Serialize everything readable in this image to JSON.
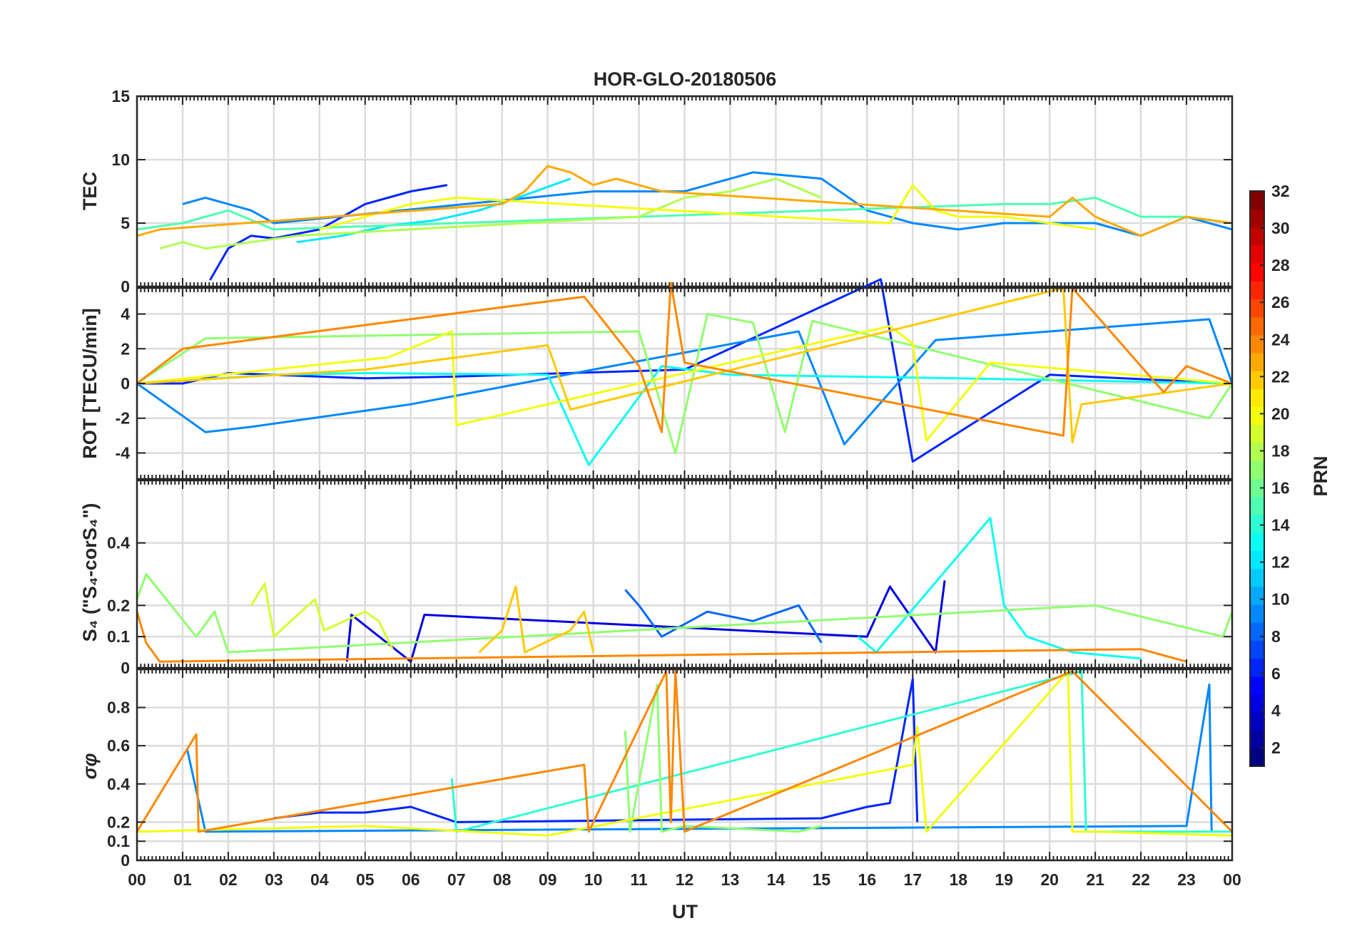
{
  "chart_data": {
    "type": "line",
    "title": "HOR-GLO-20180506",
    "xlabel": "UT",
    "x_tick_labels": [
      "00",
      "01",
      "02",
      "03",
      "04",
      "05",
      "06",
      "07",
      "08",
      "09",
      "10",
      "11",
      "12",
      "13",
      "14",
      "15",
      "16",
      "17",
      "18",
      "19",
      "20",
      "21",
      "22",
      "23",
      "00"
    ],
    "xlim": [
      0,
      24
    ],
    "grid": true,
    "panels": [
      {
        "id": "tec",
        "ylabel": "TEC",
        "ylim": [
          0,
          15
        ],
        "yticks": [
          0,
          5,
          10,
          15
        ],
        "ytick_labels": [
          "0",
          "5",
          "10",
          "15"
        ],
        "series": [
          {
            "prn": 6,
            "x": [
              1.6,
              2.0,
              2.5,
              3.0,
              4.0,
              5.0,
              6.0,
              6.8
            ],
            "y": [
              0.5,
              3.0,
              4.0,
              3.8,
              4.5,
              6.5,
              7.5,
              8.0
            ]
          },
          {
            "prn": 9,
            "x": [
              1.0,
              1.5,
              2.5,
              3.0,
              10.0,
              12.0,
              13.5,
              15.0,
              16.0,
              17.0,
              18.0,
              19.0,
              21.0,
              22.0,
              23.0,
              24.0
            ],
            "y": [
              6.5,
              7.0,
              6.0,
              5.0,
              7.5,
              7.5,
              9.0,
              8.5,
              6.0,
              5.0,
              4.5,
              5.0,
              5.0,
              4.0,
              5.5,
              4.5
            ]
          },
          {
            "prn": 12,
            "x": [
              3.5,
              4.5,
              5.5,
              6.5,
              7.5,
              8.5,
              9.5
            ],
            "y": [
              3.5,
              4.0,
              4.8,
              5.2,
              6.0,
              7.2,
              8.5
            ]
          },
          {
            "prn": 15,
            "x": [
              0,
              1.0,
              2.0,
              3.0,
              19.0,
              20.0,
              21.0,
              22.0,
              23.0,
              24.0
            ],
            "y": [
              4.5,
              5.0,
              6.0,
              4.5,
              6.5,
              6.5,
              7.0,
              5.5,
              5.5,
              5.0
            ]
          },
          {
            "prn": 18,
            "x": [
              0.5,
              1.0,
              1.5,
              2.5,
              3.5,
              11.0,
              12.0,
              13.0,
              14.0,
              15.0
            ],
            "y": [
              3.0,
              3.5,
              3.0,
              3.5,
              4.0,
              5.5,
              7.0,
              7.5,
              8.5,
              7.0
            ]
          },
          {
            "prn": 20,
            "x": [
              4.0,
              5.0,
              6.0,
              7.0,
              16.5,
              17.0,
              17.5,
              18.0,
              19.0,
              20.0,
              21.0
            ],
            "y": [
              4.5,
              5.5,
              6.5,
              7.0,
              5.0,
              8.0,
              6.0,
              5.5,
              5.5,
              5.0,
              4.5
            ]
          },
          {
            "prn": 23,
            "x": [
              0,
              0.5,
              8.0,
              8.5,
              9.0,
              9.5,
              10.0,
              10.5,
              11.0,
              11.5,
              20.0,
              20.5,
              21.0,
              22.0,
              23.0,
              24.0
            ],
            "y": [
              4.0,
              4.5,
              6.5,
              7.5,
              9.5,
              9.0,
              8.0,
              8.5,
              8.0,
              7.5,
              5.5,
              7.0,
              5.5,
              4.0,
              5.5,
              5.0
            ]
          }
        ]
      },
      {
        "id": "rot",
        "ylabel": "ROT [TECU/min]",
        "ylim": [
          -5.5,
          5.5
        ],
        "yticks": [
          -4,
          -2,
          0,
          2,
          4
        ],
        "ytick_labels": [
          "-4",
          "-2",
          "0",
          "2",
          "4"
        ],
        "series": [
          {
            "prn": 6,
            "x": [
              0,
              1.0,
              2.0,
              5.0,
              7.0,
              12.0,
              16.3,
              17.0,
              20.0,
              24.0
            ],
            "y": [
              0,
              0,
              0.6,
              0.3,
              0.4,
              0.8,
              6.0,
              -4.5,
              0.5,
              0
            ]
          },
          {
            "prn": 9,
            "x": [
              0,
              1.5,
              2.5,
              6.0,
              10.0,
              14.5,
              15.5,
              17.5,
              23.5,
              24.0
            ],
            "y": [
              0,
              -2.8,
              -2.5,
              -1.2,
              0.8,
              3.0,
              -3.5,
              2.5,
              3.7,
              0
            ]
          },
          {
            "prn": 13,
            "x": [
              0,
              3.0,
              5.0,
              9.0,
              9.9,
              11.5,
              13.0,
              18.0,
              24.0
            ],
            "y": [
              0,
              0.5,
              0.6,
              0.5,
              -4.7,
              1.0,
              0.5,
              0.3,
              0
            ]
          },
          {
            "prn": 17,
            "x": [
              0,
              1.5,
              11.0,
              11.8,
              12.5,
              13.5,
              14.2,
              14.8,
              23.5,
              24.0
            ],
            "y": [
              0,
              2.6,
              3.0,
              -4.0,
              4.0,
              3.5,
              -2.8,
              3.6,
              -2.0,
              0
            ]
          },
          {
            "prn": 20,
            "x": [
              0,
              5.5,
              6.9,
              7.0,
              16.5,
              17.0,
              17.3,
              18.7,
              24.0
            ],
            "y": [
              0,
              1.5,
              3.0,
              -2.4,
              3.3,
              2.3,
              -3.3,
              1.2,
              0
            ]
          },
          {
            "prn": 22,
            "x": [
              0,
              5.0,
              9.0,
              9.5,
              20.3,
              20.5,
              20.7,
              24.0
            ],
            "y": [
              0,
              0.8,
              2.2,
              -1.5,
              5.5,
              -3.4,
              -1.2,
              0
            ]
          },
          {
            "prn": 24,
            "x": [
              0,
              1.0,
              9.8,
              11.0,
              11.5,
              11.7,
              12.0,
              20.3,
              20.5,
              22.5,
              23.0,
              24.0
            ],
            "y": [
              0,
              2.0,
              5.0,
              1.0,
              -2.8,
              5.8,
              1.2,
              -3.0,
              5.5,
              -0.5,
              1.0,
              0
            ]
          }
        ]
      },
      {
        "id": "s4",
        "ylabel": "S₄ (\"S₄-corS₄\")",
        "ylim": [
          0,
          0.6
        ],
        "yticks": [
          0,
          0.1,
          0.2,
          0.4
        ],
        "ytick_labels": [
          "0",
          "0.1",
          "0.2",
          "0.4"
        ],
        "series": [
          {
            "prn": 4,
            "x": [
              4.6,
              4.7,
              6.0,
              6.3,
              16.0,
              16.5,
              17.5,
              17.7
            ],
            "y": [
              0.02,
              0.17,
              0.02,
              0.17,
              0.1,
              0.26,
              0.05,
              0.28
            ]
          },
          {
            "prn": 8,
            "x": [
              10.7,
              11.0,
              11.5,
              12.5,
              13.5,
              14.5,
              15.0
            ],
            "y": [
              0.25,
              0.2,
              0.1,
              0.18,
              0.15,
              0.2,
              0.08
            ]
          },
          {
            "prn": 13,
            "x": [
              15.8,
              16.2,
              18.7,
              19.0,
              19.5,
              20.5,
              22.0
            ],
            "y": [
              0.1,
              0.05,
              0.48,
              0.2,
              0.1,
              0.05,
              0.03
            ]
          },
          {
            "prn": 17,
            "x": [
              0,
              0.2,
              1.3,
              1.7,
              2.0,
              21.0,
              23.8,
              24.0
            ],
            "y": [
              0.22,
              0.3,
              0.1,
              0.18,
              0.05,
              0.2,
              0.1,
              0.18
            ]
          },
          {
            "prn": 19,
            "x": [
              2.5,
              2.8,
              3.0,
              3.9,
              4.1,
              5.0,
              5.3,
              5.6
            ],
            "y": [
              0.2,
              0.27,
              0.1,
              0.22,
              0.12,
              0.18,
              0.15,
              0.06
            ]
          },
          {
            "prn": 22,
            "x": [
              7.5,
              8.0,
              8.3,
              8.5,
              9.5,
              9.8,
              10.0
            ],
            "y": [
              0.05,
              0.12,
              0.26,
              0.05,
              0.12,
              0.18,
              0.05
            ]
          },
          {
            "prn": 24,
            "x": [
              0,
              0.2,
              0.5,
              22.0,
              22.5,
              23.0
            ],
            "y": [
              0.18,
              0.08,
              0.02,
              0.06,
              0.04,
              0.02
            ]
          }
        ]
      },
      {
        "id": "sigma",
        "ylabel": "σφ",
        "ylim": [
          0,
          1
        ],
        "yticks": [
          0,
          0.1,
          0.2,
          0.4,
          0.6,
          0.8
        ],
        "ytick_labels": [
          "0",
          "0.1",
          "0.2",
          "0.4",
          "0.6",
          "0.8"
        ],
        "series": [
          {
            "prn": 6,
            "x": [
              3.0,
              4.0,
              5.0,
              6.0,
              7.0,
              15.0,
              16.0,
              16.5,
              17.0,
              17.1
            ],
            "y": [
              0.22,
              0.25,
              0.25,
              0.28,
              0.2,
              0.22,
              0.28,
              0.3,
              0.95,
              0.2
            ]
          },
          {
            "prn": 9,
            "x": [
              1.1,
              1.5,
              23.0,
              23.5,
              23.55
            ],
            "y": [
              0.58,
              0.15,
              0.18,
              0.92,
              0.15
            ]
          },
          {
            "prn": 14,
            "x": [
              6.9,
              7.0,
              20.7,
              20.8,
              24.0
            ],
            "y": [
              0.43,
              0.15,
              0.99,
              0.15,
              0.15
            ]
          },
          {
            "prn": 17,
            "x": [
              10.7,
              10.8,
              11.4,
              11.5,
              12.0,
              14.5,
              15.0
            ],
            "y": [
              0.68,
              0.15,
              0.92,
              0.15,
              0.18,
              0.15,
              0.18
            ]
          },
          {
            "prn": 20,
            "x": [
              0,
              5.0,
              9.0,
              17.0,
              17.1,
              17.3,
              20.4,
              20.5,
              21.0,
              24.0
            ],
            "y": [
              0.15,
              0.18,
              0.13,
              0.5,
              0.7,
              0.15,
              0.99,
              0.15,
              0.15,
              0.13
            ]
          },
          {
            "prn": 24,
            "x": [
              0,
              1.3,
              1.35,
              9.8,
              9.9,
              11.6,
              11.7,
              11.8,
              12.0,
              20.5,
              24.0
            ],
            "y": [
              0.15,
              0.66,
              0.15,
              0.5,
              0.15,
              0.99,
              0.2,
              0.99,
              0.15,
              0.99,
              0.15
            ]
          }
        ]
      }
    ],
    "colorbar": {
      "label": "PRN",
      "range": [
        1,
        32
      ],
      "ticks": [
        2,
        4,
        6,
        8,
        10,
        12,
        14,
        16,
        18,
        20,
        22,
        24,
        26,
        28,
        30,
        32
      ],
      "tick_labels": [
        "2",
        "4",
        "6",
        "8",
        "10",
        "12",
        "14",
        "16",
        "18",
        "20",
        "22",
        "24",
        "26",
        "28",
        "30",
        "32"
      ],
      "colormap": "jet"
    }
  }
}
